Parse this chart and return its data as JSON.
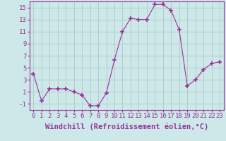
{
  "x": [
    0,
    1,
    2,
    3,
    4,
    5,
    6,
    7,
    8,
    9,
    10,
    11,
    12,
    13,
    14,
    15,
    16,
    17,
    18,
    19,
    20,
    21,
    22,
    23
  ],
  "y": [
    4.0,
    -0.5,
    1.5,
    1.5,
    1.5,
    1.0,
    0.5,
    -1.3,
    -1.3,
    0.8,
    6.3,
    11.0,
    13.2,
    13.0,
    13.0,
    15.5,
    15.5,
    14.5,
    11.3,
    2.0,
    3.0,
    4.7,
    5.7,
    6.0
  ],
  "line_color": "#993399",
  "marker": "+",
  "marker_size": 4,
  "bg_color": "#cce8e8",
  "grid_color": "#b0c8c8",
  "xlabel": "Windchill (Refroidissement éolien,°C)",
  "ylim": [
    -2,
    16
  ],
  "xlim": [
    -0.5,
    23.5
  ],
  "yticks": [
    -1,
    1,
    3,
    5,
    7,
    9,
    11,
    13,
    15
  ],
  "xticks": [
    0,
    1,
    2,
    3,
    4,
    5,
    6,
    7,
    8,
    9,
    10,
    11,
    12,
    13,
    14,
    15,
    16,
    17,
    18,
    19,
    20,
    21,
    22,
    23
  ],
  "tick_color": "#993399",
  "label_color": "#993399",
  "font_size": 6.5,
  "xlabel_fontsize": 7.5
}
